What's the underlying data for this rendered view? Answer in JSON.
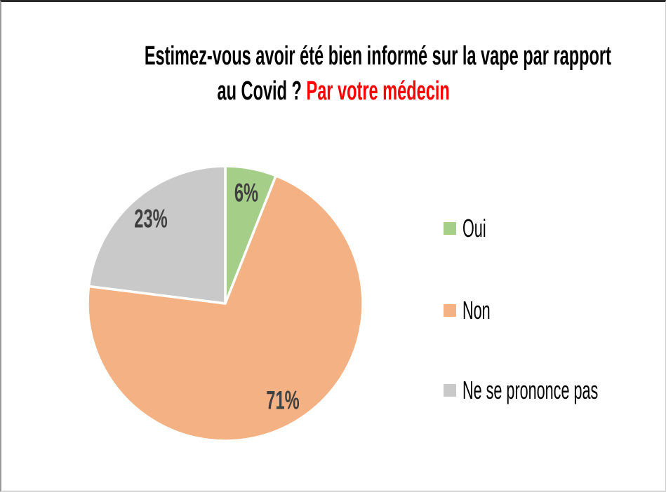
{
  "title": {
    "line1": "Estimez-vous avoir été bien informé sur la vape par rapport",
    "line2_black": "au Covid ? ",
    "line2_red": "Par votre médecin",
    "black_color": "#000000",
    "red_color": "#ff0000"
  },
  "chart_data": {
    "type": "pie",
    "title": "Estimez-vous avoir été bien informé sur la vape par rapport au Covid ? Par votre médecin",
    "categories": [
      "Oui",
      "Non",
      "Ne se prononce pas"
    ],
    "values": [
      6,
      71,
      23
    ],
    "labels": [
      "6%",
      "71%",
      "23%"
    ],
    "colors": [
      "#A5CF88",
      "#F4B183",
      "#C9C9C9"
    ],
    "start_angle_deg": 0,
    "direction": "clockwise",
    "slice_border_color": "#ffffff",
    "label_color": "#404040",
    "legend_position": "right"
  },
  "legend": {
    "items": [
      {
        "label": "Oui",
        "color": "#A5CF88"
      },
      {
        "label": "Non",
        "color": "#F4B183"
      },
      {
        "label": "Ne se prononce pas",
        "color": "#C9C9C9"
      }
    ]
  }
}
